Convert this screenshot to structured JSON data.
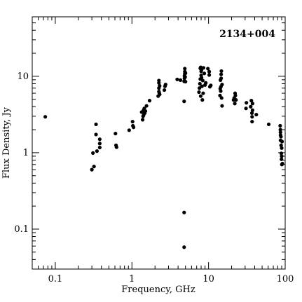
{
  "chart_data": {
    "type": "scatter",
    "title": "2134+004",
    "xlabel": "Frequency, GHz",
    "ylabel": "Flux Density, Jy",
    "xscale": "log",
    "yscale": "log",
    "xlim": [
      0.05,
      100
    ],
    "ylim": [
      0.03,
      60
    ],
    "xticks": [
      {
        "value": 0.1,
        "label": "0.1"
      },
      {
        "value": 1,
        "label": "1"
      },
      {
        "value": 10,
        "label": "10"
      },
      {
        "value": 100,
        "label": "100"
      }
    ],
    "yticks": [
      {
        "value": 0.1,
        "label": "0.1"
      },
      {
        "value": 1,
        "label": "1"
      },
      {
        "value": 10,
        "label": "10"
      }
    ],
    "grid": false,
    "legend": "none",
    "marker_color": "#000000",
    "points": [
      [
        0.074,
        2.95
      ],
      [
        0.3,
        0.6
      ],
      [
        0.31,
        0.99
      ],
      [
        0.32,
        0.66
      ],
      [
        0.34,
        2.35
      ],
      [
        0.34,
        1.73
      ],
      [
        0.35,
        1.05
      ],
      [
        0.38,
        1.5
      ],
      [
        0.38,
        1.32
      ],
      [
        0.38,
        1.17
      ],
      [
        0.61,
        1.78
      ],
      [
        0.62,
        1.25
      ],
      [
        0.63,
        1.18
      ],
      [
        0.92,
        1.97
      ],
      [
        1.02,
        2.55
      ],
      [
        1.03,
        2.25
      ],
      [
        1.05,
        2.15
      ],
      [
        1.34,
        3.4
      ],
      [
        1.38,
        2.7
      ],
      [
        1.4,
        3.0
      ],
      [
        1.42,
        3.1
      ],
      [
        1.42,
        3.6
      ],
      [
        1.45,
        3.8
      ],
      [
        1.47,
        3.3
      ],
      [
        1.5,
        3.5
      ],
      [
        1.55,
        4.1
      ],
      [
        1.7,
        4.8
      ],
      [
        2.2,
        5.5
      ],
      [
        2.25,
        6.3
      ],
      [
        2.25,
        7.0
      ],
      [
        2.25,
        8.2
      ],
      [
        2.25,
        8.8
      ],
      [
        2.28,
        6.0
      ],
      [
        2.3,
        5.8
      ],
      [
        2.3,
        7.5
      ],
      [
        2.65,
        6.6
      ],
      [
        2.7,
        7.4
      ],
      [
        2.75,
        7.8
      ],
      [
        3.9,
        9.1
      ],
      [
        4.3,
        8.9
      ],
      [
        4.8,
        0.058
      ],
      [
        4.8,
        0.165
      ],
      [
        4.8,
        4.7
      ],
      [
        4.8,
        8.6
      ],
      [
        4.85,
        9.4
      ],
      [
        4.85,
        10.1
      ],
      [
        4.9,
        10.8
      ],
      [
        4.9,
        11.5
      ],
      [
        4.9,
        12.6
      ],
      [
        4.95,
        9.8
      ],
      [
        5.0,
        8.5
      ],
      [
        5.0,
        11.0
      ],
      [
        7.5,
        6.2
      ],
      [
        7.6,
        7.0
      ],
      [
        7.7,
        8.0
      ],
      [
        7.8,
        9.2
      ],
      [
        7.8,
        12.7
      ],
      [
        7.9,
        5.5
      ],
      [
        7.9,
        13.1
      ],
      [
        8.0,
        11.6
      ],
      [
        8.0,
        10.3
      ],
      [
        8.1,
        9.6
      ],
      [
        8.1,
        12.2
      ],
      [
        8.2,
        7.4
      ],
      [
        8.3,
        4.9
      ],
      [
        8.4,
        8.8
      ],
      [
        8.5,
        6.0
      ],
      [
        8.6,
        12.9
      ],
      [
        8.8,
        10.9
      ],
      [
        9.0,
        7.7
      ],
      [
        9.2,
        8.2
      ],
      [
        9.8,
        12.6
      ],
      [
        10.2,
        11.5
      ],
      [
        10.2,
        10.4
      ],
      [
        10.4,
        7.3
      ],
      [
        10.7,
        7.6
      ],
      [
        14.1,
        5.6
      ],
      [
        14.2,
        6.9
      ],
      [
        14.3,
        8.9
      ],
      [
        14.4,
        6.4
      ],
      [
        14.5,
        7.3
      ],
      [
        14.6,
        9.4
      ],
      [
        14.6,
        10.6
      ],
      [
        14.7,
        11.7
      ],
      [
        14.8,
        5.2
      ],
      [
        15.0,
        7.8
      ],
      [
        15.0,
        4.1
      ],
      [
        21.2,
        4.9
      ],
      [
        21.6,
        5.2
      ],
      [
        22.0,
        4.4
      ],
      [
        22.2,
        6.0
      ],
      [
        22.4,
        5.6
      ],
      [
        22.8,
        4.9
      ],
      [
        30.8,
        3.8
      ],
      [
        31.2,
        4.5
      ],
      [
        35.5,
        4.0
      ],
      [
        36.2,
        4.8
      ],
      [
        36.8,
        3.3
      ],
      [
        37.0,
        2.95
      ],
      [
        37.0,
        2.55
      ],
      [
        37.5,
        3.6
      ],
      [
        37.5,
        4.4
      ],
      [
        42.0,
        3.15
      ],
      [
        61.0,
        2.35
      ],
      [
        86.0,
        2.25
      ],
      [
        86.5,
        2.0
      ],
      [
        86.8,
        1.85
      ],
      [
        87.0,
        1.7
      ],
      [
        87.0,
        1.45
      ],
      [
        88.0,
        1.62
      ],
      [
        88.5,
        1.25
      ],
      [
        89.0,
        0.98
      ],
      [
        89.5,
        0.82
      ],
      [
        90.0,
        1.15
      ],
      [
        90.0,
        0.9
      ],
      [
        90.5,
        0.7
      ],
      [
        91.0,
        1.4
      ],
      [
        92.0,
        0.72
      ]
    ]
  }
}
